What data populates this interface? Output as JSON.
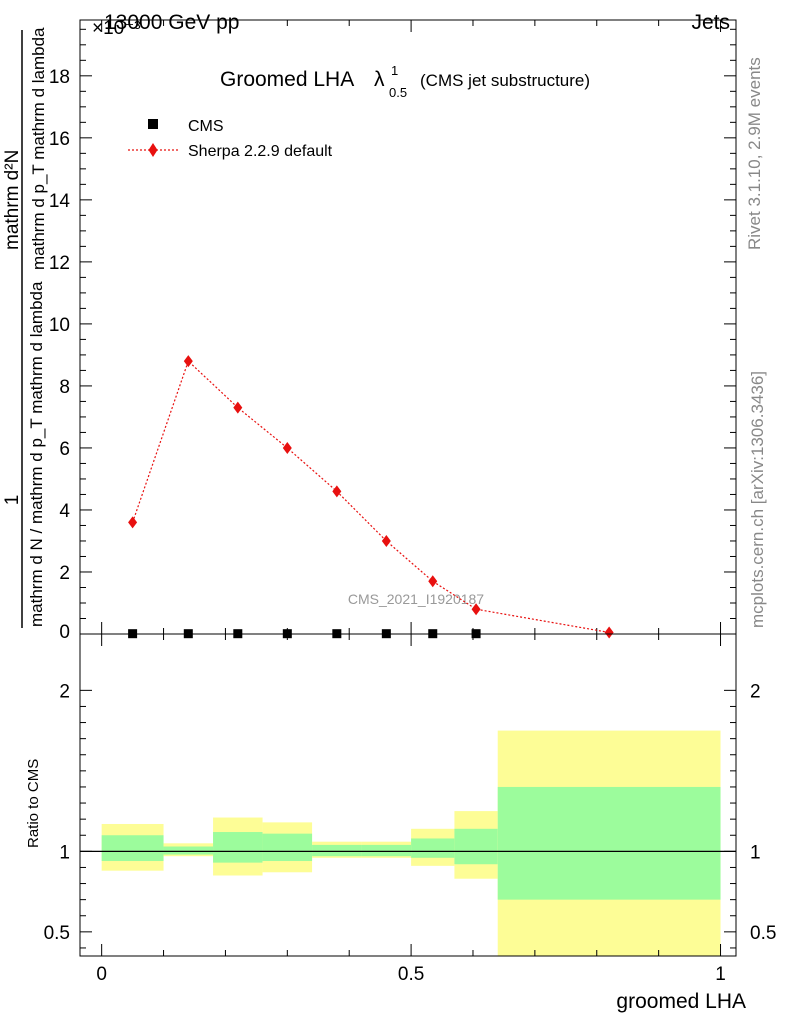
{
  "header": {
    "left_label": "13000 GeV pp",
    "right_label": "Jets",
    "exponent_label": "×10⁻³",
    "right_side_info": "Rivet 3.1.10,  2.9M events",
    "right_side_url": "mcplots.cern.ch [arXiv:1306.3436]",
    "watermark": "CMS_2021_I1920187"
  },
  "chart_data": [
    {
      "type": "scatter",
      "title_main": "Groomed LHA",
      "title_symbol": "λ",
      "title_sup": "1",
      "title_sub": "0.5",
      "title_suffix": "(CMS jet substructure)",
      "ylabel_numerator": "1",
      "ylabel_denominator": "mathrm d N / mathrm d p_T mathrm d lambda",
      "ylabel_main": "mathrm d²N",
      "ylabel_sub": "mathrm d p_T mathrm d lambda",
      "xlim": [
        -0.035,
        1.025
      ],
      "ylim": [
        0,
        19.8
      ],
      "y_scale_note": "×10⁻³",
      "yticks": [
        "2",
        "4",
        "6",
        "8",
        "10",
        "12",
        "14",
        "16",
        "18"
      ],
      "yticks_zero": "0",
      "ytick_values": [
        2,
        4,
        6,
        8,
        10,
        12,
        14,
        16,
        18
      ],
      "legend_position": "top-left",
      "legend": [
        {
          "name": "CMS",
          "marker": "square",
          "color": "#000000"
        },
        {
          "name": "Sherpa 2.2.9 default",
          "marker": "diamond",
          "color": "#e8100f",
          "line": "dotted"
        }
      ],
      "series": [
        {
          "name": "CMS",
          "color": "#000000",
          "x": [
            0.05,
            0.14,
            0.22,
            0.3,
            0.38,
            0.46,
            0.535,
            0.605
          ],
          "y": [
            0.01,
            0.01,
            0.01,
            0.01,
            0.01,
            0.01,
            0.01,
            0.01
          ]
        },
        {
          "name": "Sherpa 2.2.9 default",
          "color": "#e8100f",
          "x": [
            0.05,
            0.14,
            0.22,
            0.3,
            0.38,
            0.46,
            0.535,
            0.605,
            0.82
          ],
          "y": [
            3.6,
            8.8,
            7.3,
            6.0,
            4.6,
            3.0,
            1.7,
            0.8,
            0.05
          ]
        }
      ]
    },
    {
      "type": "area",
      "ylabel": "Ratio to CMS",
      "xlabel": "groomed LHA",
      "xlim": [
        -0.035,
        1.025
      ],
      "ylim": [
        0.35,
        2.35
      ],
      "xticks": [
        {
          "label": "0",
          "value": 0
        },
        {
          "label": "0.5",
          "value": 0.5
        },
        {
          "label": "1",
          "value": 1
        }
      ],
      "yticks": [
        {
          "label": "0.5",
          "value": 0.5
        },
        {
          "label": "1",
          "value": 1
        },
        {
          "label": "2",
          "value": 2
        }
      ],
      "colors": {
        "outer_band": "#fdfd96",
        "inner_band": "#9cfc9c",
        "ref_line": "#000000"
      },
      "bins": [
        {
          "x0": 0.0,
          "x1": 0.1,
          "outer": [
            0.88,
            1.17
          ],
          "inner": [
            0.94,
            1.1
          ]
        },
        {
          "x0": 0.1,
          "x1": 0.18,
          "outer": [
            0.97,
            1.05
          ],
          "inner": [
            0.98,
            1.03
          ]
        },
        {
          "x0": 0.18,
          "x1": 0.26,
          "outer": [
            0.85,
            1.21
          ],
          "inner": [
            0.93,
            1.12
          ]
        },
        {
          "x0": 0.26,
          "x1": 0.34,
          "outer": [
            0.87,
            1.18
          ],
          "inner": [
            0.94,
            1.11
          ]
        },
        {
          "x0": 0.34,
          "x1": 0.42,
          "outer": [
            0.96,
            1.06
          ],
          "inner": [
            0.97,
            1.04
          ]
        },
        {
          "x0": 0.42,
          "x1": 0.5,
          "outer": [
            0.96,
            1.06
          ],
          "inner": [
            0.97,
            1.04
          ]
        },
        {
          "x0": 0.5,
          "x1": 0.57,
          "outer": [
            0.91,
            1.14
          ],
          "inner": [
            0.96,
            1.08
          ]
        },
        {
          "x0": 0.57,
          "x1": 0.64,
          "outer": [
            0.83,
            1.25
          ],
          "inner": [
            0.92,
            1.14
          ]
        },
        {
          "x0": 0.64,
          "x1": 1.0,
          "outer": [
            0.35,
            1.75
          ],
          "inner": [
            0.7,
            1.4
          ]
        }
      ]
    }
  ]
}
